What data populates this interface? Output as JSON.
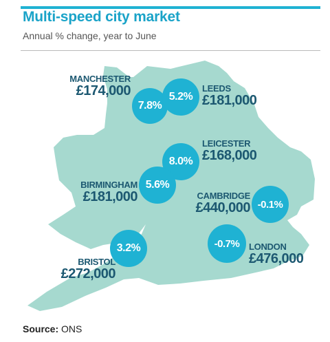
{
  "header": {
    "title": "Multi-speed city market",
    "subtitle": "Annual % change, year to June"
  },
  "colors": {
    "accent": "#1fb2d3",
    "land": "#a6d9cf",
    "city_text": "#1c5871"
  },
  "cities": [
    {
      "name": "MANCHESTER",
      "price": "£174,000",
      "change": "7.8%"
    },
    {
      "name": "LEEDS",
      "price": "£181,000",
      "change": "5.2%"
    },
    {
      "name": "LEICESTER",
      "price": "£168,000",
      "change": "8.0%"
    },
    {
      "name": "BIRMINGHAM",
      "price": "£181,000",
      "change": "5.6%"
    },
    {
      "name": "CAMBRIDGE",
      "price": "£440,000",
      "change": "-0.1%"
    },
    {
      "name": "BRISTOL",
      "price": "£272,000",
      "change": "3.2%"
    },
    {
      "name": "LONDON",
      "price": "£476,000",
      "change": "-0.7%"
    }
  ],
  "footer": {
    "source_label": "Source:",
    "source_value": "ONS"
  }
}
